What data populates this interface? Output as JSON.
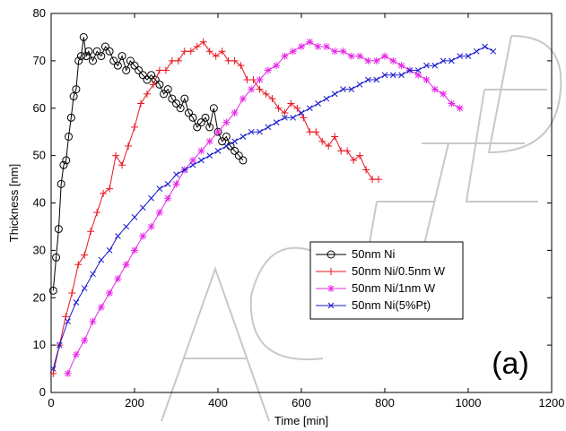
{
  "chart_data": {
    "type": "line",
    "xlabel": "Time [min]",
    "ylabel": "Thickness [nm]",
    "xlim": [
      0,
      1200
    ],
    "ylim": [
      0,
      80
    ],
    "xticks": [
      0,
      200,
      400,
      600,
      800,
      1000,
      1200
    ],
    "yticks": [
      0,
      10,
      20,
      30,
      40,
      50,
      60,
      70,
      80
    ],
    "grid": false,
    "legend_position": "center-right",
    "annotation": "(a)",
    "watermark": "ACCEPTED MANUSCRIPT",
    "series": [
      {
        "name": "50nm Ni",
        "color": "#000000",
        "marker": "circle",
        "x": [
          5,
          12,
          18,
          24,
          30,
          36,
          42,
          48,
          54,
          60,
          66,
          72,
          78,
          84,
          90,
          100,
          110,
          120,
          130,
          140,
          150,
          160,
          170,
          180,
          190,
          200,
          210,
          220,
          230,
          240,
          250,
          260,
          270,
          280,
          290,
          300,
          310,
          320,
          330,
          340,
          350,
          360,
          370,
          380,
          390,
          400,
          410,
          420,
          430,
          440,
          450,
          460
        ],
        "y": [
          21.5,
          28.5,
          34.5,
          44,
          48,
          49,
          54,
          58,
          62.5,
          64,
          70,
          71,
          75,
          71,
          72,
          70,
          72,
          71,
          73,
          72,
          70,
          69,
          71,
          68,
          70,
          69,
          68,
          67,
          66,
          67,
          66,
          65,
          63,
          64,
          62,
          61,
          60,
          62,
          59,
          58,
          56,
          57,
          58,
          56,
          60,
          55,
          53,
          54,
          52,
          51,
          50,
          49
        ]
      },
      {
        "name": "50nm Ni/0.5nm W",
        "color": "#e8141e",
        "marker": "plus",
        "x": [
          5,
          20,
          35,
          50,
          65,
          80,
          95,
          110,
          125,
          140,
          155,
          170,
          185,
          200,
          215,
          230,
          245,
          260,
          275,
          290,
          305,
          320,
          335,
          350,
          365,
          380,
          395,
          410,
          425,
          440,
          455,
          470,
          485,
          500,
          515,
          530,
          545,
          560,
          575,
          590,
          605,
          620,
          635,
          650,
          665,
          680,
          695,
          710,
          725,
          740,
          755,
          770,
          785
        ],
        "y": [
          4,
          10,
          16,
          21,
          27,
          29,
          34,
          38,
          42,
          43,
          50,
          48,
          52,
          56,
          61,
          63,
          65,
          68,
          68,
          70,
          70,
          72,
          72,
          73,
          74,
          72,
          71,
          72,
          70,
          70,
          69,
          66,
          66,
          64,
          63,
          62,
          60,
          59,
          61,
          60,
          58,
          55,
          55,
          53,
          52,
          54,
          51,
          51,
          49,
          50,
          47,
          45,
          45
        ]
      },
      {
        "name": "50nm Ni/1nm W",
        "color": "#e628e6",
        "marker": "star",
        "x": [
          40,
          60,
          80,
          100,
          120,
          140,
          160,
          180,
          200,
          220,
          240,
          260,
          280,
          300,
          320,
          340,
          360,
          380,
          400,
          420,
          440,
          460,
          480,
          500,
          520,
          540,
          560,
          580,
          600,
          620,
          640,
          660,
          680,
          700,
          720,
          740,
          760,
          780,
          800,
          820,
          840,
          860,
          880,
          900,
          920,
          940,
          960,
          980
        ],
        "y": [
          4,
          8,
          11,
          15,
          18,
          21,
          24,
          27,
          30,
          33,
          35,
          38,
          41,
          44,
          47,
          49,
          51,
          53,
          55,
          57,
          59,
          62,
          64,
          66,
          68,
          69,
          71,
          72,
          73,
          74,
          73,
          73,
          72,
          72,
          71,
          71,
          70,
          70,
          71,
          70,
          69,
          68,
          67,
          66,
          64,
          63,
          61,
          60
        ]
      },
      {
        "name": "50nm Ni(5%Pt)",
        "color": "#1a1ad0",
        "marker": "x",
        "x": [
          5,
          20,
          40,
          60,
          80,
          100,
          120,
          140,
          160,
          180,
          200,
          220,
          240,
          260,
          280,
          300,
          320,
          340,
          360,
          380,
          400,
          420,
          440,
          460,
          480,
          500,
          520,
          540,
          560,
          580,
          600,
          620,
          640,
          660,
          680,
          700,
          720,
          740,
          760,
          780,
          800,
          820,
          840,
          860,
          880,
          900,
          920,
          940,
          960,
          980,
          1000,
          1020,
          1040,
          1060
        ],
        "y": [
          5,
          10,
          15,
          19,
          22,
          25,
          28,
          30,
          33,
          35,
          37,
          39,
          41,
          43,
          44,
          46,
          47,
          48,
          49,
          50,
          51,
          52,
          53,
          54,
          55,
          55,
          56,
          57,
          58,
          58,
          59,
          60,
          61,
          62,
          63,
          64,
          64,
          65,
          66,
          66,
          67,
          67,
          67,
          68,
          68,
          69,
          69,
          70,
          70,
          71,
          71,
          72,
          73,
          72
        ]
      }
    ]
  }
}
